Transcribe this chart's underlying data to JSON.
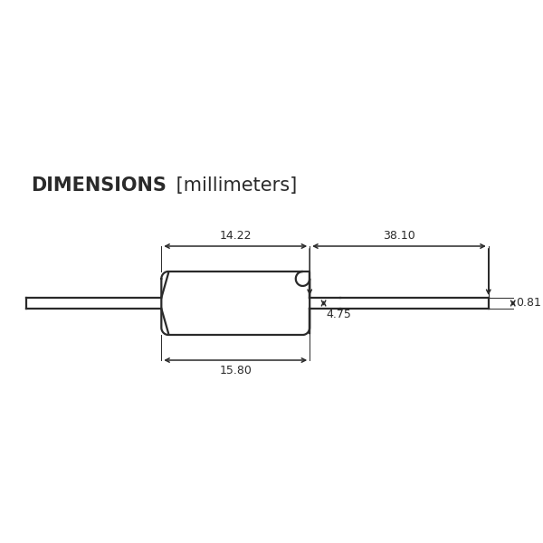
{
  "title_bold": "DIMENSIONS",
  "title_normal": " [millimeters]",
  "bg_color": "#ffffff",
  "line_color": "#2a2a2a",
  "text_color": "#2a2a2a",
  "figsize": [
    6.0,
    6.0
  ],
  "dpi": 100,
  "dimensions": {
    "dim_14_22": "14.22",
    "dim_38_10": "38.10",
    "dim_15_80": "15.80",
    "dim_4_75": "4.75",
    "dim_0_81": "0.81"
  }
}
